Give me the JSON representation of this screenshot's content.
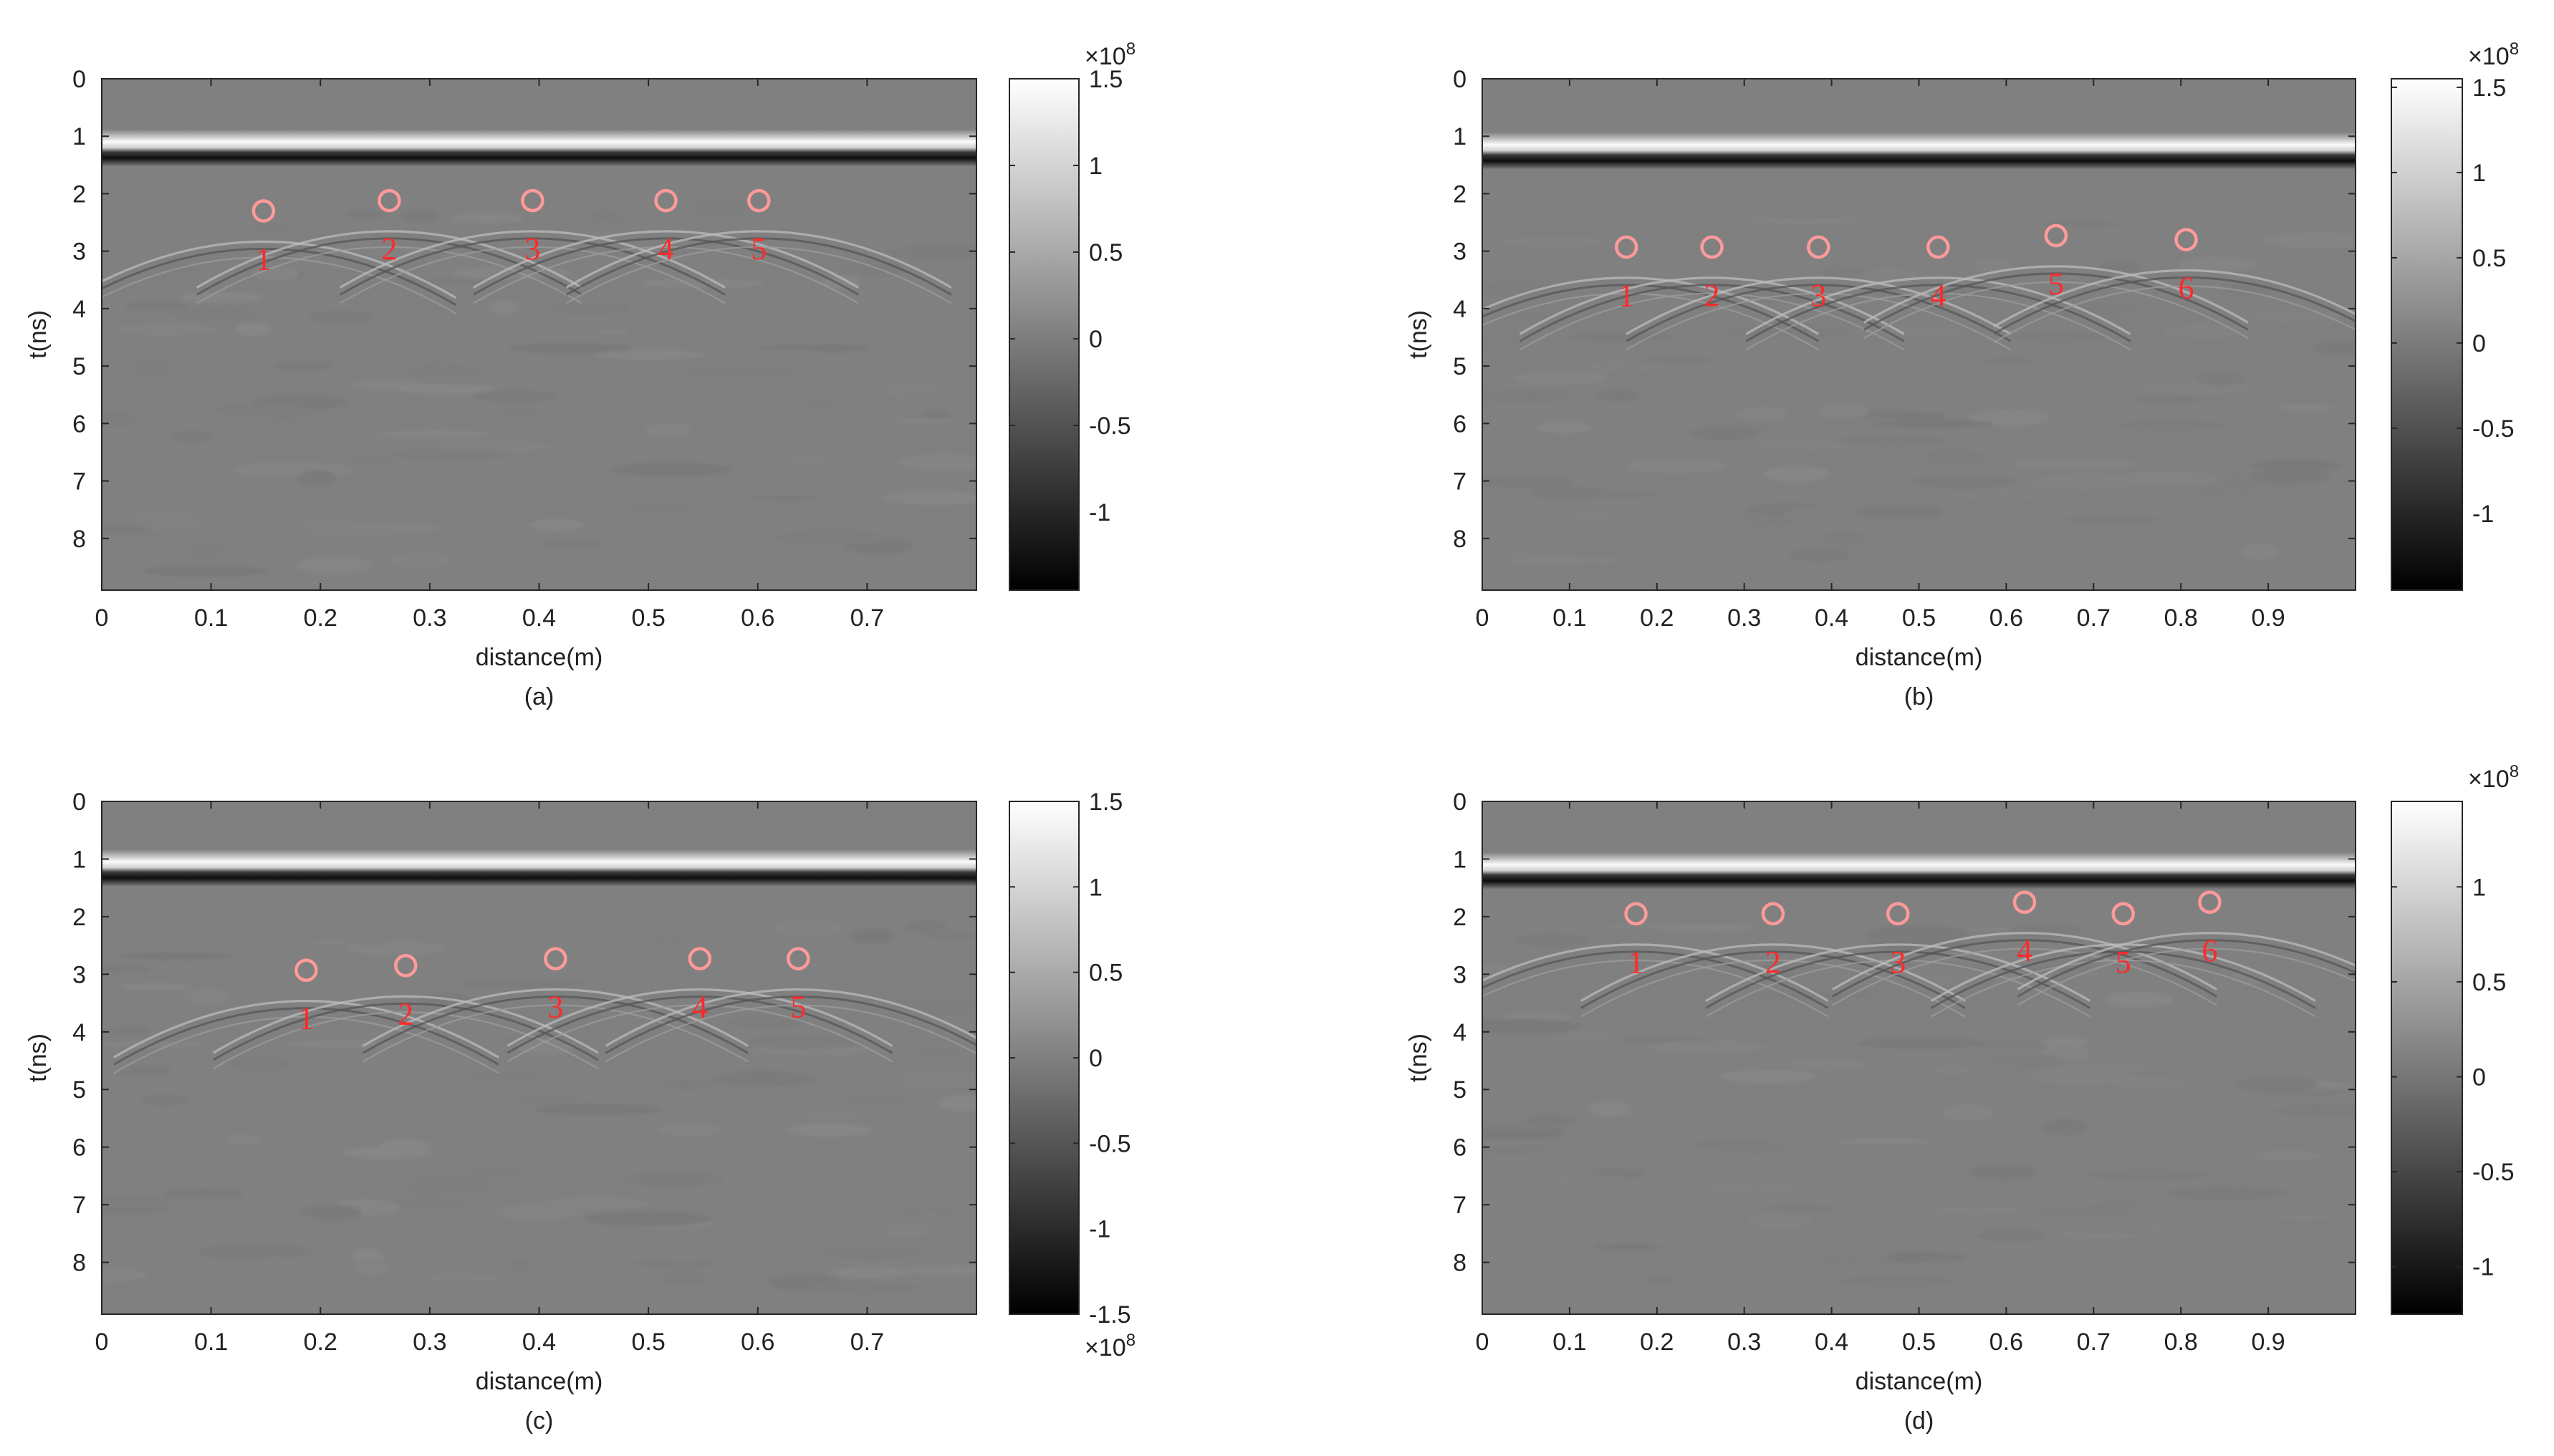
{
  "figure_title": "",
  "colors": {
    "marker": "#ff2a2a",
    "marker_ring": "#ff9a9a",
    "background": "#ffffff",
    "axis": "#262626"
  },
  "chart_data": [
    {
      "id": "a",
      "type": "heatmap",
      "caption": "(a)",
      "xlabel": "distance(m)",
      "ylabel": "t(ns)",
      "xlim": [
        0,
        0.8
      ],
      "ylim": [
        0,
        8.9
      ],
      "x_ticks": [
        "0",
        "0.1",
        "0.2",
        "0.3",
        "0.4",
        "0.5",
        "0.6",
        "0.7"
      ],
      "y_ticks": [
        "0",
        "1",
        "2",
        "3",
        "4",
        "5",
        "6",
        "7",
        "8"
      ],
      "colormap": "gray",
      "direct_wave_t": 1.15,
      "colorbar": {
        "range": [
          -1.45,
          1.5
        ],
        "ticks": [
          "1.5",
          "1",
          "0.5",
          "0",
          "-0.5",
          "-1"
        ],
        "exponent_label": "×10",
        "exponent_power": "8",
        "exponent_position": "top"
      },
      "markers": [
        {
          "label": "1",
          "x": 0.148,
          "t": 2.3
        },
        {
          "label": "2",
          "x": 0.263,
          "t": 2.12
        },
        {
          "label": "3",
          "x": 0.394,
          "t": 2.12
        },
        {
          "label": "4",
          "x": 0.516,
          "t": 2.12
        },
        {
          "label": "5",
          "x": 0.601,
          "t": 2.12
        }
      ]
    },
    {
      "id": "b",
      "type": "heatmap",
      "caption": "(b)",
      "xlabel": "distance(m)",
      "ylabel": "t(ns)",
      "xlim": [
        0,
        1.0
      ],
      "ylim": [
        0,
        8.9
      ],
      "x_ticks": [
        "0",
        "0.1",
        "0.2",
        "0.3",
        "0.4",
        "0.5",
        "0.6",
        "0.7",
        "0.8",
        "0.9"
      ],
      "y_ticks": [
        "0",
        "1",
        "2",
        "3",
        "4",
        "5",
        "6",
        "7",
        "8"
      ],
      "colormap": "gray",
      "direct_wave_t": 1.2,
      "colorbar": {
        "range": [
          -1.45,
          1.55
        ],
        "ticks": [
          "1.5",
          "1",
          "0.5",
          "0",
          "-0.5",
          "-1"
        ],
        "exponent_label": "×10",
        "exponent_power": "8",
        "exponent_position": "top"
      },
      "markers": [
        {
          "label": "1",
          "x": 0.165,
          "t": 2.93
        },
        {
          "label": "2",
          "x": 0.263,
          "t": 2.93
        },
        {
          "label": "3",
          "x": 0.385,
          "t": 2.93
        },
        {
          "label": "4",
          "x": 0.522,
          "t": 2.93
        },
        {
          "label": "5",
          "x": 0.657,
          "t": 2.73
        },
        {
          "label": "6",
          "x": 0.806,
          "t": 2.8
        }
      ]
    },
    {
      "id": "c",
      "type": "heatmap",
      "caption": "(c)",
      "xlabel": "distance(m)",
      "ylabel": "t(ns)",
      "xlim": [
        0,
        0.8
      ],
      "ylim": [
        0,
        8.9
      ],
      "x_ticks": [
        "0",
        "0.1",
        "0.2",
        "0.3",
        "0.4",
        "0.5",
        "0.6",
        "0.7"
      ],
      "y_ticks": [
        "0",
        "1",
        "2",
        "3",
        "4",
        "5",
        "6",
        "7",
        "8"
      ],
      "colormap": "gray",
      "direct_wave_t": 1.1,
      "colorbar": {
        "range": [
          -1.5,
          1.5
        ],
        "ticks": [
          "1.5",
          "1",
          "0.5",
          "0",
          "-0.5",
          "-1",
          "-1.5"
        ],
        "exponent_label": "×10",
        "exponent_power": "8",
        "exponent_position": "bottom"
      },
      "markers": [
        {
          "label": "1",
          "x": 0.187,
          "t": 2.93
        },
        {
          "label": "2",
          "x": 0.278,
          "t": 2.85
        },
        {
          "label": "3",
          "x": 0.415,
          "t": 2.73
        },
        {
          "label": "4",
          "x": 0.547,
          "t": 2.73
        },
        {
          "label": "5",
          "x": 0.637,
          "t": 2.73
        }
      ]
    },
    {
      "id": "d",
      "type": "heatmap",
      "caption": "(d)",
      "xlabel": "distance(m)",
      "ylabel": "t(ns)",
      "xlim": [
        0,
        1.0
      ],
      "ylim": [
        0,
        8.9
      ],
      "x_ticks": [
        "0",
        "0.1",
        "0.2",
        "0.3",
        "0.4",
        "0.5",
        "0.6",
        "0.7",
        "0.8",
        "0.9"
      ],
      "y_ticks": [
        "0",
        "1",
        "2",
        "3",
        "4",
        "5",
        "6",
        "7",
        "8"
      ],
      "colormap": "gray",
      "direct_wave_t": 1.15,
      "colorbar": {
        "range": [
          -1.25,
          1.45
        ],
        "ticks": [
          "1",
          "0.5",
          "0",
          "-0.5",
          "-1"
        ],
        "exponent_label": "×10",
        "exponent_power": "8",
        "exponent_position": "top"
      },
      "markers": [
        {
          "label": "1",
          "x": 0.176,
          "t": 1.95
        },
        {
          "label": "2",
          "x": 0.333,
          "t": 1.95
        },
        {
          "label": "3",
          "x": 0.476,
          "t": 1.95
        },
        {
          "label": "4",
          "x": 0.621,
          "t": 1.75
        },
        {
          "label": "5",
          "x": 0.734,
          "t": 1.95
        },
        {
          "label": "6",
          "x": 0.833,
          "t": 1.75
        }
      ]
    }
  ]
}
